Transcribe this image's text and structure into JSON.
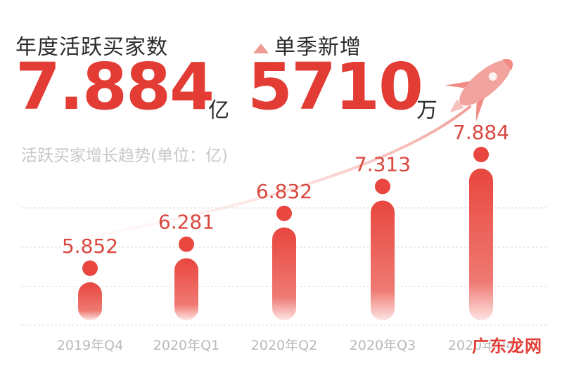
{
  "header": {
    "annual_label": "年度活跃买家数",
    "annual_value": "7.884",
    "annual_unit": "亿",
    "quarter_label": "单季新增",
    "quarter_value": "5710",
    "quarter_unit": "万"
  },
  "chart_data": {
    "type": "bar",
    "title": "活跃买家增长趋势(单位：亿)",
    "categories": [
      "2019年Q4",
      "2020年Q1",
      "2020年Q2",
      "2020年Q3",
      "2020年Q4"
    ],
    "values": [
      5.852,
      6.281,
      6.832,
      7.313,
      7.884
    ],
    "value_labels": [
      "5.852",
      "6.281",
      "6.832",
      "7.313",
      "7.884"
    ],
    "grid": true,
    "colors": {
      "bar": "#e8463e",
      "bar_light": "#fbe3e1",
      "accent": "#e23c35",
      "grid": "#d9d9d9"
    }
  },
  "watermark": "广东龙网"
}
